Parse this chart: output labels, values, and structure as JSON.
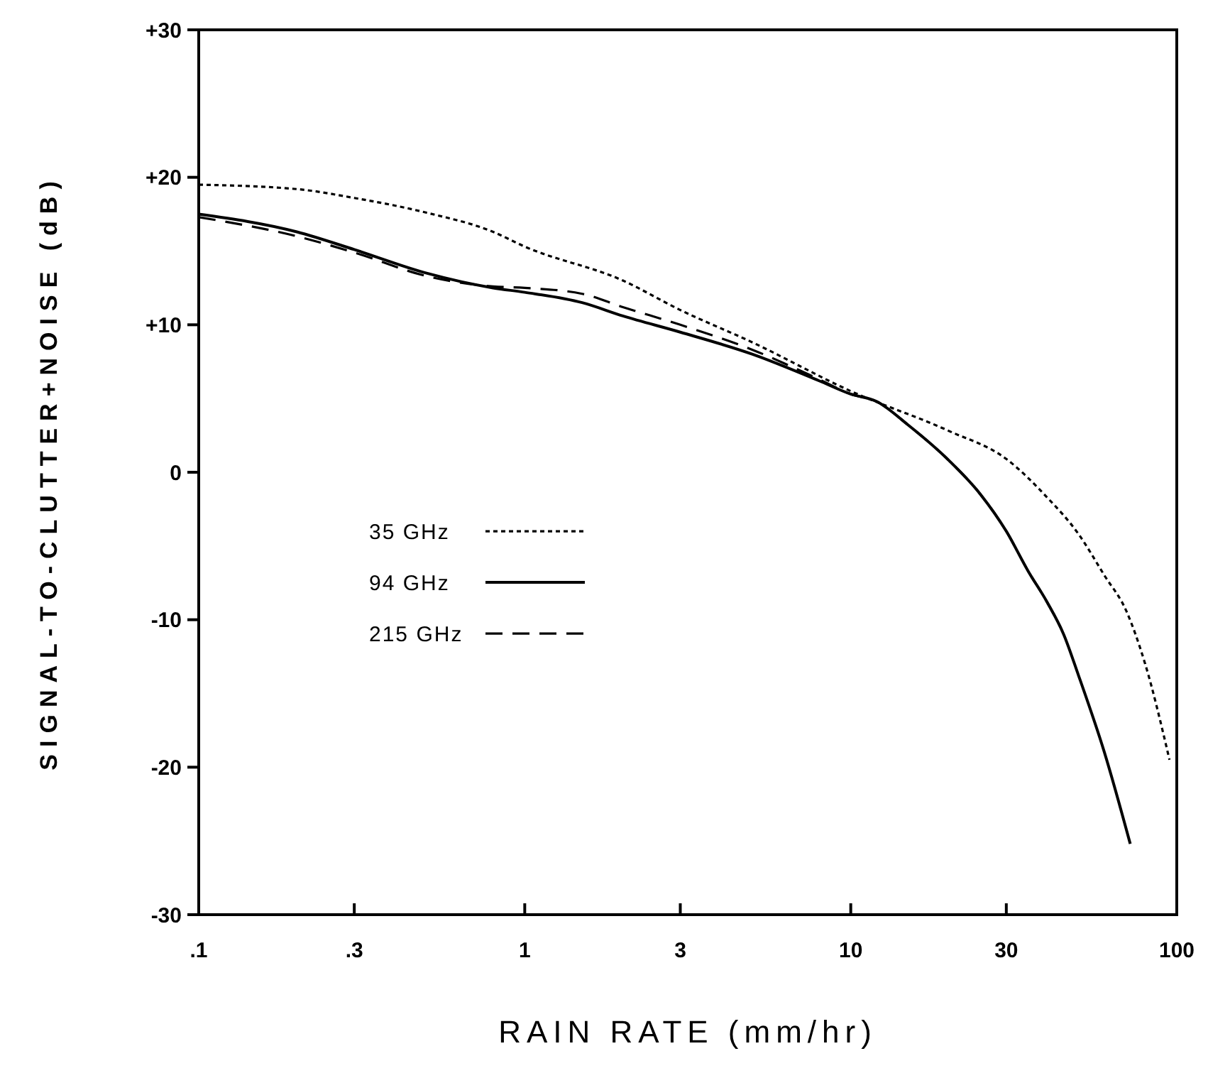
{
  "chart_data": {
    "type": "line",
    "xlabel": "RAIN RATE (mm/hr)",
    "ylabel": "SIGNAL-TO-CLUTTER+NOISE (dB)",
    "log": "x",
    "xlim": [
      0.1,
      100
    ],
    "ylim": [
      -30,
      30
    ],
    "xticks": [
      {
        "value": 0.1,
        "label": ".1"
      },
      {
        "value": 0.3,
        "label": ".3"
      },
      1,
      3,
      10,
      30,
      100
    ],
    "yticks": [
      {
        "value": 30,
        "label": "+30"
      },
      {
        "value": 20,
        "label": "+20"
      },
      {
        "value": 10,
        "label": "+10"
      },
      0,
      -10,
      -20,
      -30
    ],
    "grid": false,
    "legend": "left",
    "series": [
      {
        "name": "35 GHz",
        "color": "#000000",
        "line_style": "dotted",
        "x": [
          0.1,
          0.2,
          0.3,
          0.5,
          0.8,
          1,
          2,
          3,
          5,
          10,
          20,
          30,
          40,
          50,
          60,
          70,
          80,
          95
        ],
        "values": [
          19.5,
          19.2,
          18.6,
          17.6,
          16.3,
          15.3,
          13,
          11,
          8.8,
          5.5,
          2.8,
          0.9,
          -1.7,
          -4.2,
          -7,
          -9.4,
          -13,
          -19.5
        ]
      },
      {
        "name": "94 GHz",
        "color": "#000000",
        "line_style": "solid",
        "x": [
          0.1,
          0.2,
          0.3,
          0.5,
          0.8,
          1,
          1.5,
          2,
          3,
          5,
          8,
          10,
          12,
          15,
          20,
          25,
          30,
          35,
          40,
          45,
          50,
          60,
          72
        ],
        "values": [
          17.5,
          16.3,
          15.1,
          13.5,
          12.5,
          12.2,
          11.5,
          10.6,
          9.5,
          8,
          6.2,
          5.3,
          4.8,
          3.2,
          0.8,
          -1.5,
          -4,
          -6.7,
          -8.8,
          -11,
          -13.8,
          -19,
          -25.2
        ]
      },
      {
        "name": "215 GHz",
        "color": "#000000",
        "line_style": "dashed",
        "x": [
          0.1,
          0.2,
          0.3,
          0.5,
          0.8,
          1,
          1.5,
          2,
          3,
          5,
          8,
          10,
          12,
          15,
          20,
          25,
          30,
          35,
          40,
          44
        ],
        "values": [
          17.3,
          16,
          14.9,
          13.3,
          12.6,
          12.5,
          12.1,
          11.2,
          10,
          8.3,
          6.3,
          5.3,
          4.8,
          3.2,
          0.8,
          -1.5,
          -4,
          -6.7,
          -8.8,
          -10.5
        ]
      }
    ]
  }
}
